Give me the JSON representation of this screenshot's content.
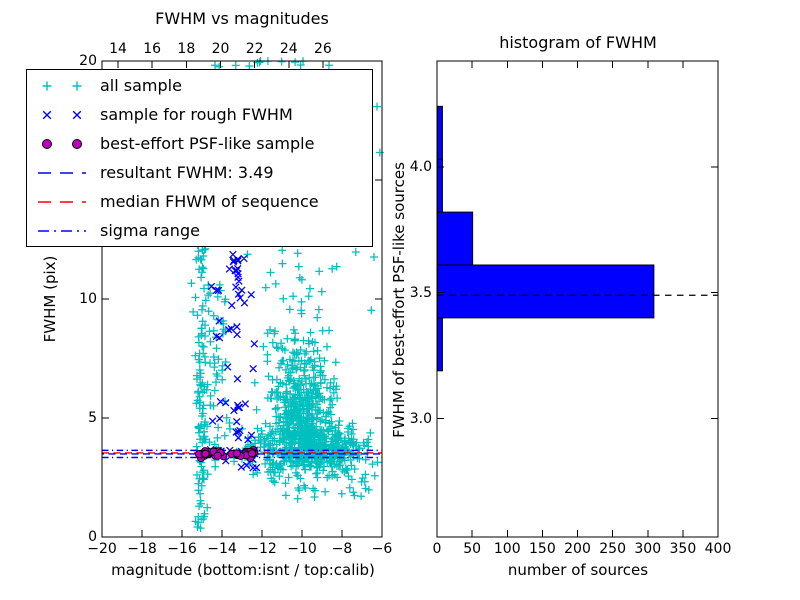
{
  "figure": {
    "background": "#ffffff"
  },
  "colors": {
    "cyan": "#00bfbf",
    "blue": "#0000ff",
    "magenta": "#bf00bf",
    "red": "#ff0000",
    "black": "#000000",
    "bar_fill": "#0000ff"
  },
  "left_chart": {
    "title": "FWHM vs magnitudes",
    "xlabel": "magnitude (bottom:isnt / top:calib)",
    "ylabel": "FWHM (pix)",
    "top_ticks": {
      "values": [
        14,
        16,
        18,
        20,
        22,
        24,
        26
      ],
      "labels": [
        "14",
        "16",
        "18",
        "20",
        "22",
        "24",
        "26"
      ]
    },
    "bottom_ticks": {
      "values": [
        -20,
        -18,
        -16,
        -14,
        -12,
        -10,
        -8,
        -6
      ],
      "labels": [
        "−20",
        "−18",
        "−16",
        "−14",
        "−12",
        "−10",
        "−8",
        "−6"
      ]
    },
    "y_ticks": {
      "values": [
        0,
        5,
        10,
        15,
        20
      ],
      "labels": [
        "0",
        "5",
        "10",
        "15",
        "20"
      ]
    }
  },
  "right_chart": {
    "title": "histogram of FWHM",
    "xlabel": "number of sources",
    "ylabel": "FWHM of best-effort PSF-like sources",
    "x_ticks": {
      "values": [
        0,
        50,
        100,
        150,
        200,
        250,
        300,
        350,
        400
      ],
      "labels": [
        "0",
        "50",
        "100",
        "150",
        "200",
        "250",
        "300",
        "350",
        "400"
      ]
    },
    "y_ticks": {
      "values": [
        3.0,
        3.5,
        4.0
      ],
      "labels": [
        "3.0",
        "3.5",
        "4.0"
      ]
    }
  },
  "legend": {
    "items": [
      {
        "label": "all sample",
        "marker": "plus",
        "color": "#00bfbf"
      },
      {
        "label": "sample for rough FWHM",
        "marker": "x",
        "color": "#0000ff"
      },
      {
        "label": "best-effort PSF-like sample",
        "marker": "circle",
        "color": "#bf00bf",
        "edge": "#000000"
      },
      {
        "label": "resultant FWHM: 3.49",
        "line": "dashed",
        "color": "#0000ff"
      },
      {
        "label": "median FHWM of sequence",
        "line": "dashed",
        "color": "#ff0000"
      },
      {
        "label": "sigma range",
        "line": "dashdot",
        "color": "#0000ff"
      }
    ]
  },
  "chart_data": [
    {
      "type": "scatter",
      "title": "FWHM vs magnitudes",
      "xlabel": "magnitude (bottom:isnt / top:calib)",
      "ylabel": "FWHM (pix)",
      "xlim": [
        -20,
        -6
      ],
      "ylim": [
        0,
        20
      ],
      "top_xlim": [
        13.06,
        29.46
      ],
      "grid": false,
      "legend_position": "upper left",
      "series": [
        {
          "name": "all sample",
          "marker": "plus",
          "color": "#00bfbf",
          "clusters": [
            {
              "n": 13,
              "x": {
                "d": "u",
                "a": -15.4,
                "b": -8.6
              },
              "y": {
                "d": "u",
                "a": 19.75,
                "b": 20.0
              }
            },
            {
              "n": 115,
              "x": {
                "d": "g",
                "m": -15.05,
                "s": 0.17,
                "clip": [
                  -15.55,
                  -14.55
                ]
              },
              "y": {
                "d": "u",
                "a": 0.3,
                "b": 12.3
              }
            },
            {
              "n": 55,
              "x": {
                "d": "g",
                "m": -14.15,
                "s": 0.25,
                "clip": [
                  -14.7,
                  -13.6
                ]
              },
              "y": {
                "d": "u",
                "a": 2.9,
                "b": 10.6
              }
            },
            {
              "n": 55,
              "x": {
                "d": "g",
                "m": -10.4,
                "s": 0.9,
                "clip": [
                  -12.6,
                  -6.1
                ]
              },
              "y": {
                "d": "u",
                "a": 7.2,
                "b": 19.6
              }
            },
            {
              "n": 35,
              "x": {
                "d": "u",
                "a": -12.9,
                "b": -6.1
              },
              "y": {
                "d": "u",
                "a": 7.2,
                "b": 19.7
              }
            },
            {
              "n": 380,
              "x": {
                "d": "g",
                "m": -10.1,
                "s": 0.8,
                "clip": [
                  -12.6,
                  -6.05
                ]
              },
              "y": {
                "d": "hg",
                "b": 4.1,
                "s": 2.1,
                "clip": [
                  4.1,
                  12.3
                ]
              }
            },
            {
              "n": 540,
              "x": {
                "d": "g",
                "m": -9.6,
                "s": 1.3,
                "clip": [
                  -13.4,
                  -6.05
                ]
              },
              "y": {
                "d": "g",
                "m": 3.7,
                "s": 0.5,
                "clip": [
                  2.5,
                  5.3
                ]
              }
            },
            {
              "n": 42,
              "x": {
                "d": "u",
                "a": -11.6,
                "b": -6.3
              },
              "y": {
                "d": "u",
                "a": 1.6,
                "b": 3.05
              }
            }
          ]
        },
        {
          "name": "sample for rough FWHM",
          "marker": "x",
          "color": "#0000ff",
          "clusters": [
            {
              "n": 14,
              "x": {
                "d": "g",
                "m": -13.35,
                "s": 0.2,
                "clip": [
                  -13.8,
                  -12.9
                ]
              },
              "y": {
                "d": "g",
                "m": 11.3,
                "s": 0.35,
                "clip": [
                  10.5,
                  12.1
                ]
              }
            },
            {
              "n": 36,
              "x": {
                "d": "u",
                "a": -14.55,
                "b": -12.3
              },
              "y": {
                "d": "u",
                "a": 3.9,
                "b": 10.9
              }
            },
            {
              "n": 13,
              "x": {
                "d": "u",
                "a": -14.6,
                "b": -12.15
              },
              "y": {
                "d": "g",
                "m": 3.55,
                "s": 0.16,
                "clip": [
                  3.2,
                  3.9
                ]
              }
            },
            {
              "n": 5,
              "x": {
                "d": "u",
                "a": -13.1,
                "b": -12.2
              },
              "y": {
                "d": "u",
                "a": 2.9,
                "b": 3.35
              }
            }
          ]
        },
        {
          "name": "best-effort PSF-like sample",
          "marker": "circle",
          "color": "#bf00bf",
          "edge": "#000000",
          "clusters": [
            {
              "n": 42,
              "x": {
                "d": "u",
                "a": -15.15,
                "b": -12.4
              },
              "y": {
                "d": "g",
                "m": 3.5,
                "s": 0.08,
                "clip": [
                  3.32,
                  3.68
                ]
              }
            }
          ]
        }
      ],
      "hlines": [
        {
          "name": "sigma range upper",
          "y": 3.64,
          "color": "#0000ff",
          "style": "dashdot"
        },
        {
          "name": "sigma range lower",
          "y": 3.34,
          "color": "#0000ff",
          "style": "dashdot"
        },
        {
          "name": "median FHWM of sequence",
          "y": 3.53,
          "color": "#ff0000",
          "style": "dashed"
        },
        {
          "name": "resultant FWHM",
          "y": 3.49,
          "color": "#0000ff",
          "style": "dashed"
        }
      ]
    },
    {
      "type": "bar",
      "orientation": "horizontal",
      "title": "histogram of FWHM",
      "xlabel": "number of sources",
      "ylabel": "FWHM of best-effort PSF-like sources",
      "xlim": [
        0,
        400
      ],
      "ylim": [
        2.53,
        4.42
      ],
      "grid": false,
      "bin_edges": [
        3.19,
        3.4,
        3.61,
        3.82,
        4.03,
        4.24
      ],
      "counts": [
        7,
        308,
        50,
        7,
        7
      ],
      "bar_color": "#0000ff",
      "bar_edge": "#000000",
      "dashed_line": {
        "y": 3.49,
        "color": "#000000",
        "style": "dashed"
      }
    }
  ]
}
